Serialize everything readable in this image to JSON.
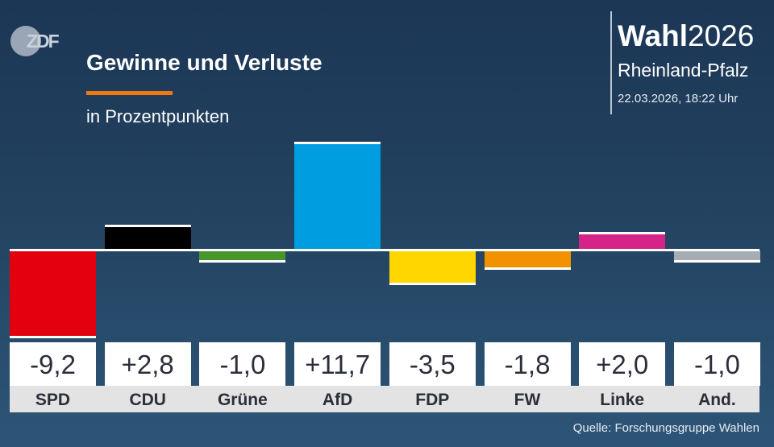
{
  "header": {
    "logo": "ZDF",
    "title": "Gewinne und Verluste",
    "subtitle": "in Prozentpunkten",
    "brand_bold": "Wahl",
    "brand_year": "2026",
    "region": "Rheinland-Pfalz",
    "timestamp": "22.03.2026, 18:22 Uhr"
  },
  "colors": {
    "accent": "#f07a12",
    "background": "#22425f"
  },
  "chart_data": {
    "type": "bar",
    "title": "Gewinne und Verluste",
    "subtitle": "in Prozentpunkten",
    "categories": [
      "SPD",
      "CDU",
      "Grüne",
      "AfD",
      "FDP",
      "FW",
      "Linke",
      "And."
    ],
    "values": [
      -9.2,
      2.8,
      -1.0,
      11.7,
      -3.5,
      -1.8,
      2.0,
      -1.0
    ],
    "value_labels": [
      "-9,2",
      "+2,8",
      "-1,0",
      "+11,7",
      "-3,5",
      "-1,8",
      "+2,0",
      "-1,0"
    ],
    "colors": [
      "#e3000f",
      "#000000",
      "#46962b",
      "#009ee0",
      "#ffd600",
      "#f39200",
      "#d6238a",
      "#a6adb4"
    ],
    "grid": false
  },
  "source": "Quelle: Forschungsgruppe Wahlen"
}
